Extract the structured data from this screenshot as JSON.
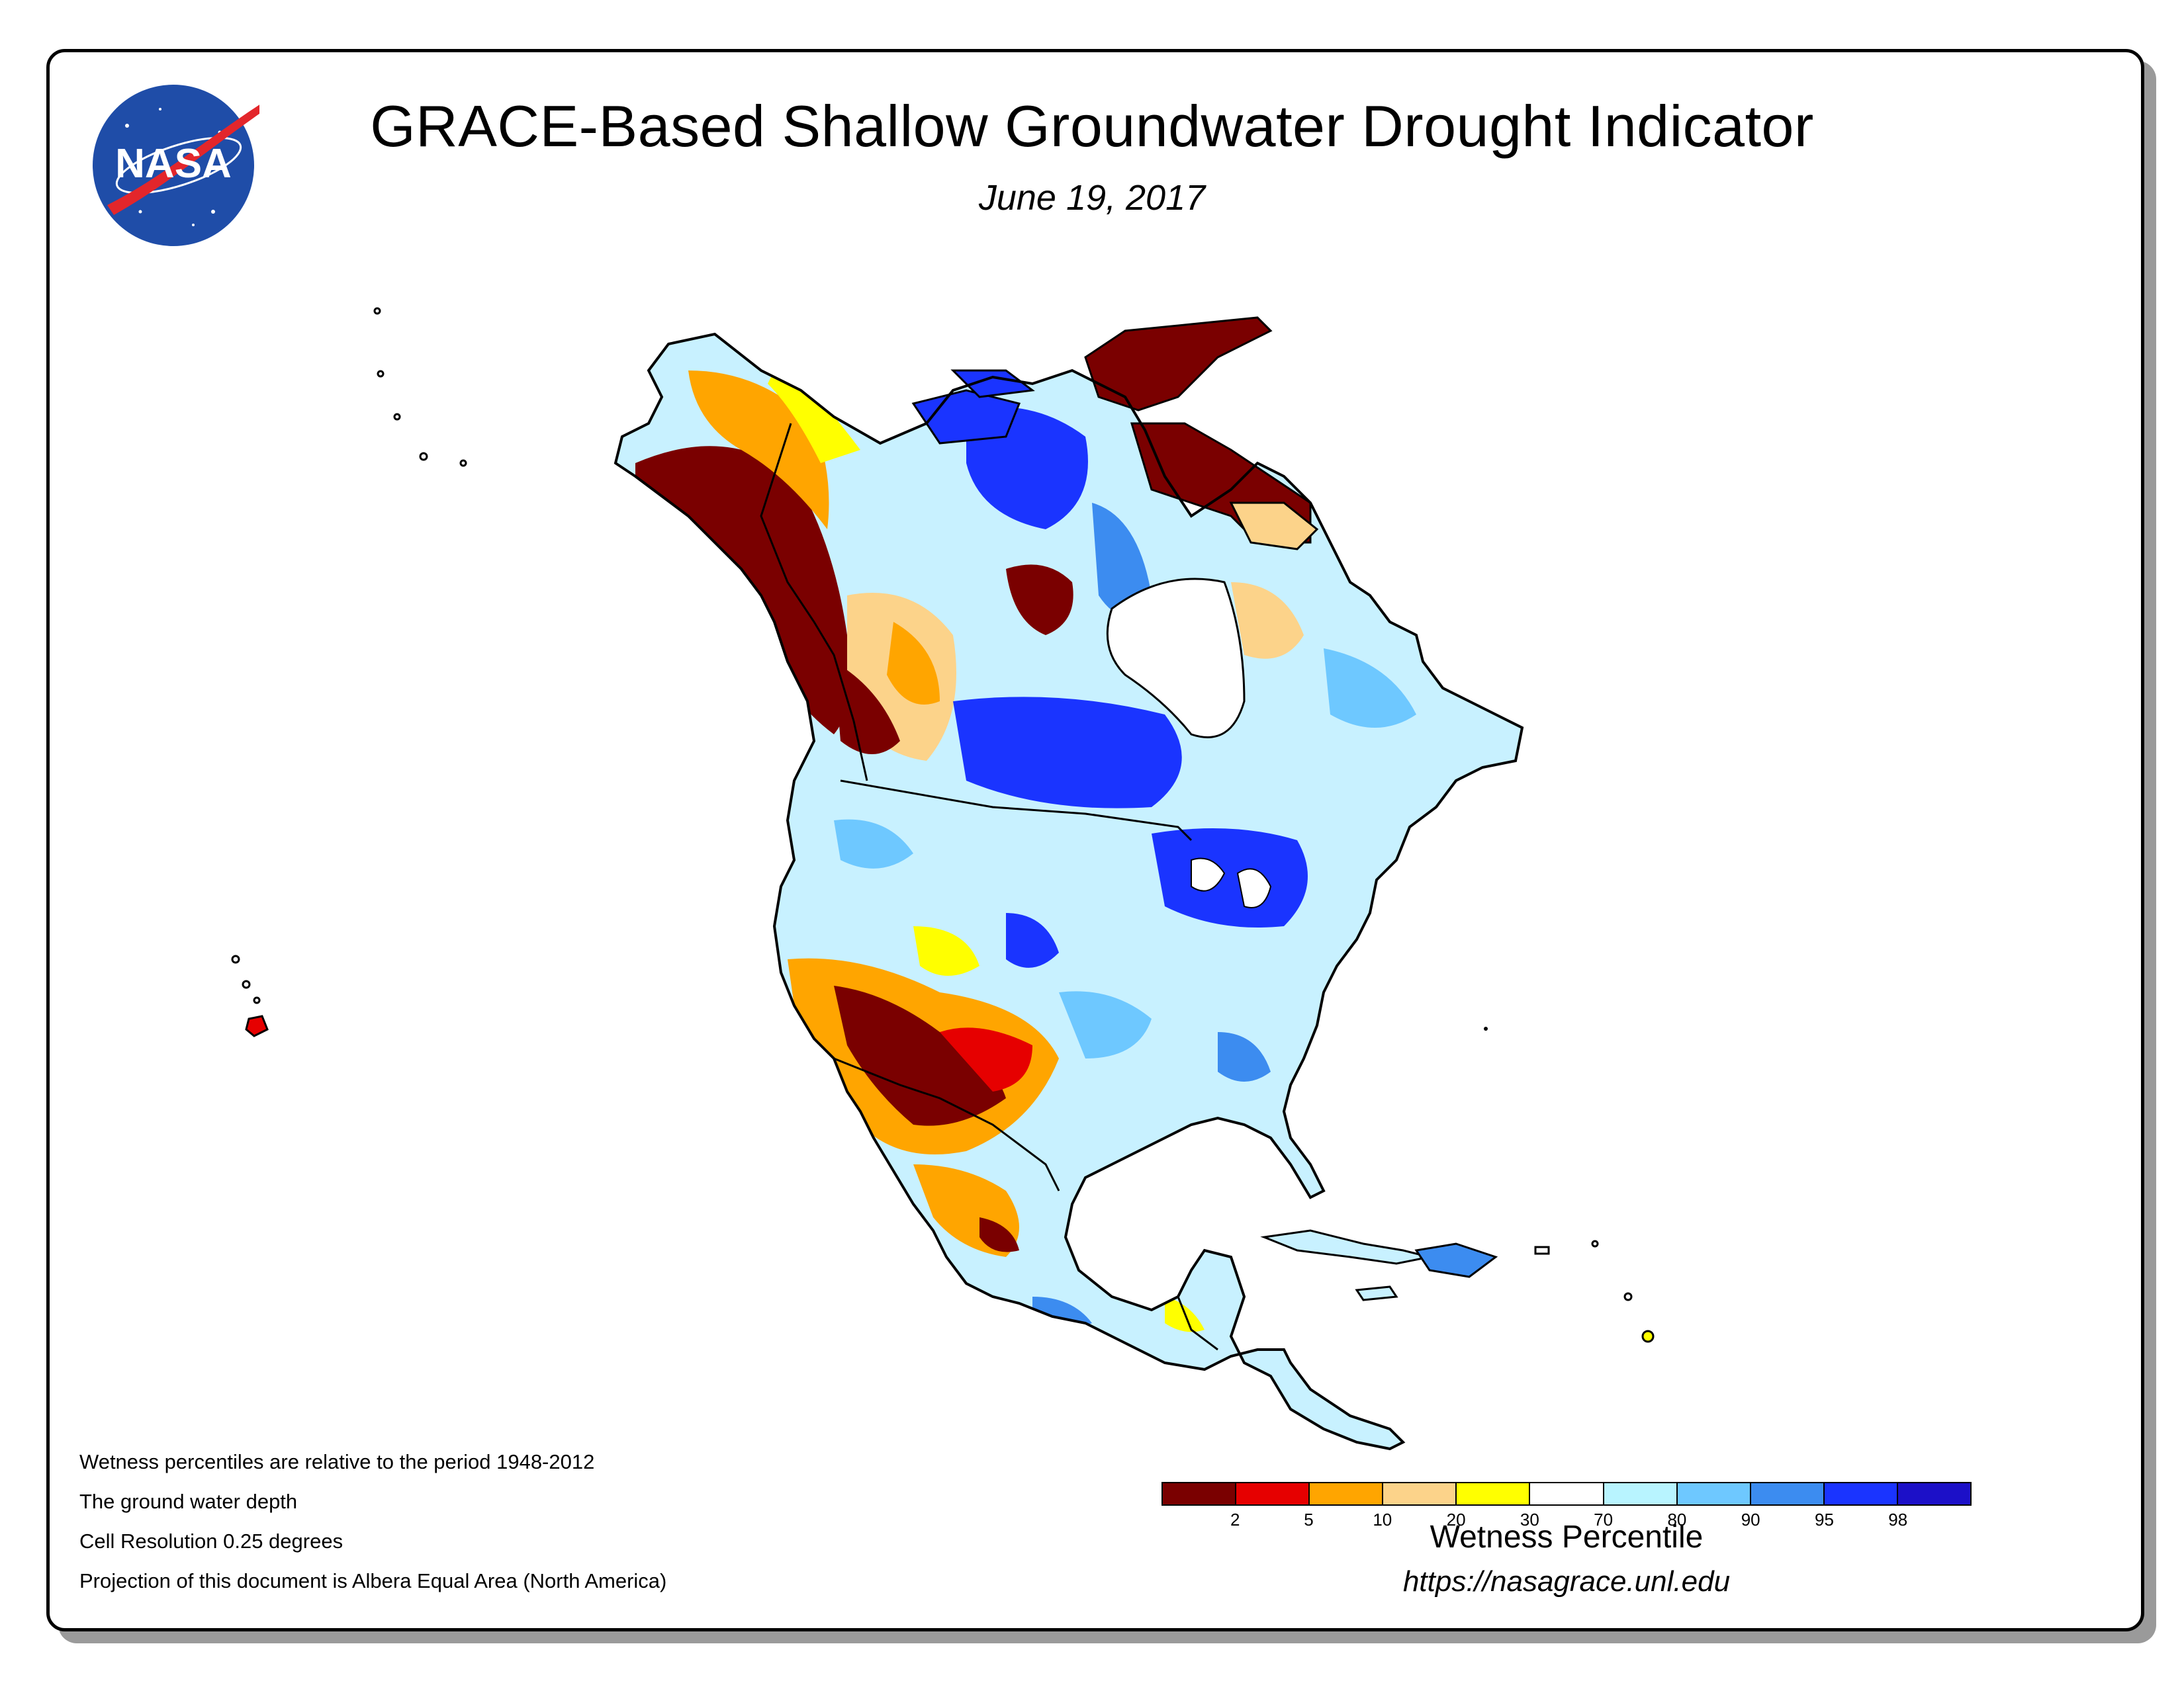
{
  "title": "GRACE-Based Shallow Groundwater Drought Indicator",
  "date": "June 19, 2017",
  "logo_text": "NASA",
  "notes": [
    "Wetness percentiles are relative to the period 1948-2012",
    "The ground water depth",
    "Cell Resolution 0.25 degrees",
    "Projection of this document is Albera Equal Area (North America)"
  ],
  "legend": {
    "title": "Wetness Percentile",
    "tick_labels": [
      "2",
      "5",
      "10",
      "20",
      "30",
      "70",
      "80",
      "90",
      "95",
      "98"
    ],
    "colors": [
      "#7a0000",
      "#e60000",
      "#ffa500",
      "#fcd38a",
      "#ffff00",
      "#ffffff",
      "#b8f4ff",
      "#6ec8ff",
      "#3c8cf0",
      "#1a34ff",
      "#1c10c8"
    ]
  },
  "url": "https://nasagrace.unl.edu"
}
